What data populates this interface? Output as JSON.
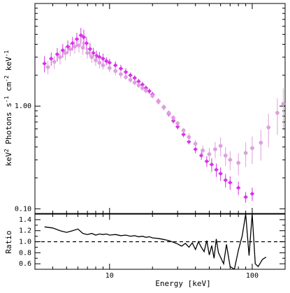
{
  "chart_data": [
    {
      "type": "scatter",
      "panel": "spectrum",
      "xlabel": "Energy [keV]",
      "ylabel": "keV² Photons s⁻¹ cm⁻² keV⁻¹",
      "ylabel_parts": {
        "main": "keV",
        "sup1": "2",
        "mid1": " Photons s",
        "sup2": "-1",
        "mid2": " cm",
        "sup3": "-2",
        "mid3": " keV",
        "sup4": "-1"
      },
      "xscale": "log",
      "yscale": "log",
      "xlim": [
        3,
        170
      ],
      "ylim": [
        0.09,
        10
      ],
      "y_tick_labels": [
        {
          "value": 0.1,
          "label": "0.10"
        },
        {
          "value": 1.0,
          "label": "1.00"
        }
      ],
      "x_tick_labels": [
        {
          "value": 10,
          "label": "10"
        },
        {
          "value": 100,
          "label": "100"
        }
      ],
      "grid": false,
      "series": [
        {
          "color": "#d633e6",
          "marker": "diamond",
          "x": [
            3.5,
            3.9,
            4.3,
            4.7,
            5.1,
            5.5,
            5.9,
            6.3,
            6.6,
            6.9,
            7.3,
            7.7,
            8.1,
            8.5,
            9.0,
            9.5,
            10.0,
            11,
            12,
            13,
            14,
            15,
            16,
            17,
            18,
            19,
            20,
            22,
            24,
            26,
            28,
            30,
            33,
            36,
            40,
            44,
            48,
            52,
            56,
            60,
            65,
            70,
            80,
            90,
            100
          ],
          "y": [
            2.6,
            2.9,
            3.2,
            3.5,
            3.8,
            4.1,
            4.5,
            4.9,
            4.7,
            4.1,
            3.6,
            3.3,
            3.1,
            3.0,
            2.9,
            2.75,
            2.65,
            2.5,
            2.32,
            2.15,
            2.0,
            1.88,
            1.74,
            1.62,
            1.5,
            1.4,
            1.3,
            1.12,
            0.97,
            0.84,
            0.72,
            0.63,
            0.53,
            0.45,
            0.38,
            0.33,
            0.29,
            0.27,
            0.24,
            0.22,
            0.19,
            0.18,
            0.16,
            0.13,
            0.14
          ],
          "yerr": [
            0.06,
            0.05,
            0.05,
            0.05,
            0.05,
            0.05,
            0.05,
            0.06,
            0.06,
            0.05,
            0.05,
            0.04,
            0.04,
            0.04,
            0.04,
            0.03,
            0.03,
            0.03,
            0.03,
            0.03,
            0.02,
            0.02,
            0.02,
            0.02,
            0.02,
            0.02,
            0.02,
            0.02,
            0.02,
            0.02,
            0.02,
            0.02,
            0.02,
            0.02,
            0.03,
            0.03,
            0.04,
            0.05,
            0.05,
            0.05,
            0.05,
            0.05,
            0.05,
            0.04,
            0.05
          ]
        },
        {
          "color": "#dda0dd",
          "marker": "circle",
          "x": [
            3.7,
            4.1,
            4.5,
            4.9,
            5.3,
            5.7,
            6.1,
            6.5,
            7.0,
            7.5,
            8.0,
            8.5,
            9.0,
            10,
            11,
            12,
            13,
            14,
            15,
            16,
            17,
            18,
            20,
            22,
            24,
            26,
            28,
            30,
            33,
            36,
            40,
            45,
            50,
            55,
            60,
            65,
            70,
            80,
            90,
            100,
            115,
            130,
            150,
            165
          ],
          "y": [
            2.4,
            2.7,
            3.0,
            3.3,
            3.6,
            3.8,
            3.9,
            3.7,
            3.3,
            3.0,
            2.8,
            2.65,
            2.5,
            2.35,
            2.2,
            2.05,
            1.92,
            1.8,
            1.7,
            1.6,
            1.5,
            1.42,
            1.26,
            1.1,
            0.98,
            0.86,
            0.77,
            0.68,
            0.58,
            0.5,
            0.43,
            0.37,
            0.34,
            0.38,
            0.41,
            0.33,
            0.3,
            0.28,
            0.35,
            0.39,
            0.44,
            0.62,
            0.86,
            1.05
          ],
          "yerr": [
            0.05,
            0.05,
            0.05,
            0.05,
            0.05,
            0.05,
            0.05,
            0.05,
            0.04,
            0.04,
            0.04,
            0.04,
            0.03,
            0.03,
            0.03,
            0.03,
            0.02,
            0.02,
            0.02,
            0.02,
            0.02,
            0.02,
            0.02,
            0.02,
            0.02,
            0.02,
            0.02,
            0.02,
            0.02,
            0.03,
            0.03,
            0.04,
            0.05,
            0.06,
            0.07,
            0.07,
            0.07,
            0.08,
            0.09,
            0.1,
            0.11,
            0.12,
            0.13,
            0.14
          ]
        }
      ]
    },
    {
      "type": "line",
      "panel": "ratio",
      "xlabel": "Energy [keV]",
      "ylabel": "Ratio",
      "xscale": "log",
      "xlim": [
        3,
        170
      ],
      "ylim": [
        0.5,
        1.5
      ],
      "y_tick_labels": [
        {
          "value": 0.6,
          "label": "0.6"
        },
        {
          "value": 0.8,
          "label": "0.8"
        },
        {
          "value": 1.0,
          "label": "1.0"
        },
        {
          "value": 1.2,
          "label": "1.2"
        },
        {
          "value": 1.4,
          "label": "1.4"
        }
      ],
      "x_tick_labels": [
        {
          "value": 10,
          "label": "10"
        },
        {
          "value": 100,
          "label": "100"
        }
      ],
      "reference_line": 1.0,
      "series": [
        {
          "color": "#000000",
          "x": [
            3.5,
            4.0,
            4.5,
            5.0,
            5.5,
            6.0,
            6.5,
            7.0,
            7.5,
            8.0,
            8.5,
            9.0,
            9.5,
            10,
            11,
            12,
            13,
            14,
            15,
            16,
            17,
            18,
            19,
            20,
            22,
            24,
            26,
            28,
            30,
            32,
            34,
            36,
            38,
            40,
            42,
            44,
            46,
            48,
            50,
            52,
            54,
            56,
            58,
            60,
            63,
            66,
            70,
            75,
            80,
            85,
            90,
            95,
            100,
            105,
            110,
            118,
            125
          ],
          "y": [
            1.27,
            1.25,
            1.2,
            1.17,
            1.2,
            1.23,
            1.15,
            1.13,
            1.15,
            1.12,
            1.14,
            1.13,
            1.14,
            1.12,
            1.13,
            1.11,
            1.12,
            1.1,
            1.11,
            1.09,
            1.1,
            1.08,
            1.09,
            1.07,
            1.06,
            1.04,
            1.02,
            0.99,
            0.96,
            0.92,
            0.97,
            0.9,
            0.98,
            0.86,
            1.0,
            0.9,
            0.82,
            1.02,
            0.76,
            0.93,
            0.7,
            1.05,
            0.8,
            0.72,
            0.6,
            0.95,
            0.55,
            0.5,
            0.85,
            1.1,
            1.5,
            0.75,
            1.5,
            0.6,
            0.55,
            0.68,
            0.72
          ]
        }
      ]
    }
  ]
}
